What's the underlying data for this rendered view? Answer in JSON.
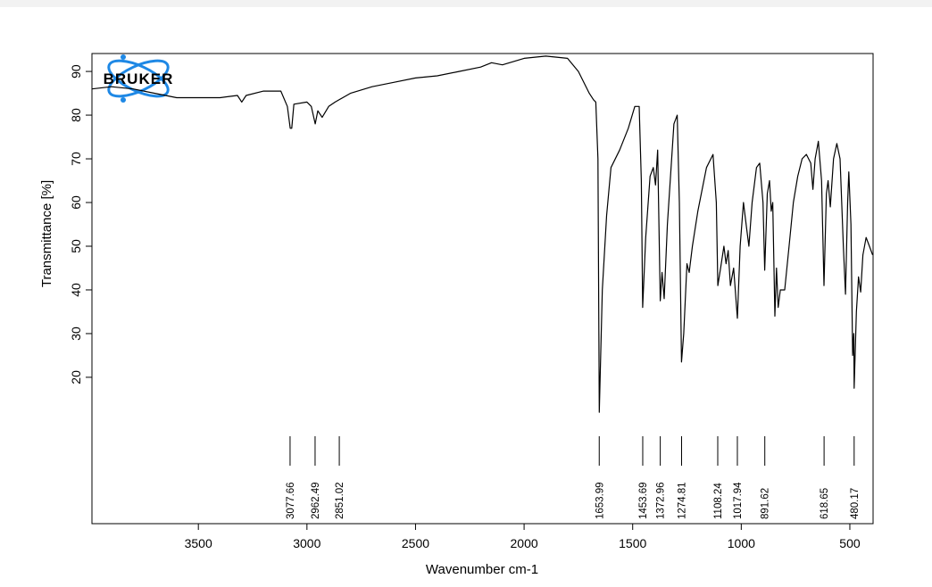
{
  "chart_data": {
    "type": "line",
    "logo": "BRUKER",
    "xlabel": "Wavenumber cm-1",
    "ylabel": "Transmittance [%]",
    "xlim": [
      3990,
      393
    ],
    "ylim": [
      -13.5,
      94.1
    ],
    "x_reversed": true,
    "xticks": [
      3500,
      3000,
      2500,
      2000,
      1500,
      1000,
      500
    ],
    "yticks": [
      20,
      30,
      40,
      50,
      60,
      70,
      80,
      90
    ],
    "color": "#000000",
    "peaks": [
      3077.66,
      2962.49,
      2851.02,
      1653.99,
      1453.69,
      1372.96,
      1274.81,
      1108.24,
      1017.94,
      891.62,
      618.65,
      480.17
    ],
    "x": [
      3990,
      3900,
      3800,
      3700,
      3600,
      3500,
      3400,
      3320,
      3300,
      3280,
      3200,
      3120,
      3090,
      3077,
      3070,
      3060,
      3000,
      2980,
      2962,
      2950,
      2930,
      2900,
      2870,
      2800,
      2700,
      2600,
      2500,
      2400,
      2300,
      2200,
      2150,
      2100,
      2000,
      1900,
      1800,
      1750,
      1700,
      1680,
      1670,
      1660,
      1654,
      1640,
      1620,
      1600,
      1560,
      1520,
      1490,
      1470,
      1460,
      1454,
      1440,
      1420,
      1405,
      1395,
      1385,
      1373,
      1365,
      1355,
      1340,
      1310,
      1295,
      1285,
      1275,
      1265,
      1250,
      1240,
      1225,
      1200,
      1160,
      1130,
      1115,
      1108,
      1095,
      1080,
      1070,
      1060,
      1050,
      1035,
      1018,
      1005,
      990,
      975,
      965,
      950,
      930,
      915,
      900,
      892,
      880,
      870,
      862,
      855,
      845,
      838,
      830,
      820,
      800,
      780,
      760,
      740,
      720,
      700,
      680,
      670,
      660,
      645,
      630,
      619,
      608,
      600,
      590,
      575,
      560,
      545,
      530,
      520,
      510,
      505,
      495,
      487,
      482,
      480,
      470,
      460,
      450,
      440,
      425,
      410,
      395
    ],
    "values": [
      86,
      86.5,
      86,
      85,
      84,
      84,
      84,
      84.5,
      83,
      84.5,
      85.5,
      85.5,
      82,
      77,
      77,
      82.5,
      83,
      82,
      78,
      81,
      79.5,
      82,
      83,
      85,
      86.5,
      87.5,
      88.5,
      89,
      90,
      91,
      92,
      91.5,
      93,
      93.5,
      93,
      90,
      85,
      83.5,
      83,
      70,
      12,
      40,
      57,
      68,
      72,
      77,
      82,
      82,
      65,
      36,
      52,
      66,
      68,
      64,
      72,
      37.5,
      44,
      38,
      55,
      78,
      80,
      60,
      23.5,
      30,
      46,
      44,
      50,
      58,
      68,
      71,
      60,
      41,
      45,
      50,
      46,
      49,
      41,
      45,
      33.5,
      50,
      60,
      54,
      50,
      60,
      68,
      69,
      60,
      44.5,
      62,
      65,
      58,
      60,
      34,
      45,
      36,
      40,
      40,
      50,
      60,
      66,
      70,
      71,
      69,
      63,
      70,
      74,
      65,
      41,
      62,
      65,
      59,
      70,
      73.5,
      70,
      50,
      39,
      60,
      67,
      55,
      25,
      30,
      17.5,
      35,
      43,
      39.5,
      48,
      52,
      50,
      48
    ]
  }
}
